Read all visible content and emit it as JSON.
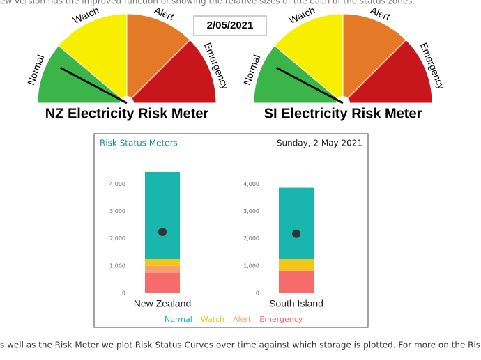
{
  "top_text": "ew version has the improved function of showing the relative sizes of the each of the status zones.",
  "date_box": "2/05/2021",
  "gauges": [
    {
      "title": "NZ Electricity Risk Meter",
      "labels": [
        "Normal",
        "Watch",
        "Alert",
        "Emergency"
      ]
    },
    {
      "title": "SI Electricity Risk Meter",
      "labels": [
        "Normal",
        "Watch",
        "Alert",
        "Emergency"
      ]
    }
  ],
  "chart_data": {
    "type": "bar",
    "stacked": true,
    "title": "Risk Status Meters",
    "subtitle": "Sunday, 2 May 2021",
    "categories": [
      "New Zealand",
      "South Island"
    ],
    "series": [
      {
        "name": "Emergency",
        "color": "#f76b6b",
        "values": [
          750,
          820
        ]
      },
      {
        "name": "Alert",
        "color": "#f7a072",
        "values": [
          250,
          0
        ]
      },
      {
        "name": "Watch",
        "color": "#f2c51b",
        "values": [
          250,
          430
        ]
      },
      {
        "name": "Normal",
        "color": "#1ab5ad",
        "values": [
          3200,
          2620
        ]
      }
    ],
    "legend_order": [
      3,
      2,
      1,
      0
    ],
    "markers": {
      "color": "#333333",
      "values": [
        2250,
        2180
      ]
    },
    "ylim": [
      0,
      4600
    ],
    "yticks": [
      0,
      {
        "value": 1000,
        "label": "1,000"
      },
      {
        "value": 2000,
        "label": "2,000"
      },
      {
        "value": 3000,
        "label": "3,000"
      },
      {
        "value": 4000,
        "label": "4,000"
      }
    ]
  },
  "bottom_text": "s well as the Risk Meter we plot Risk Status Curves over time against which storage is plotted. For more on the Risk Status"
}
